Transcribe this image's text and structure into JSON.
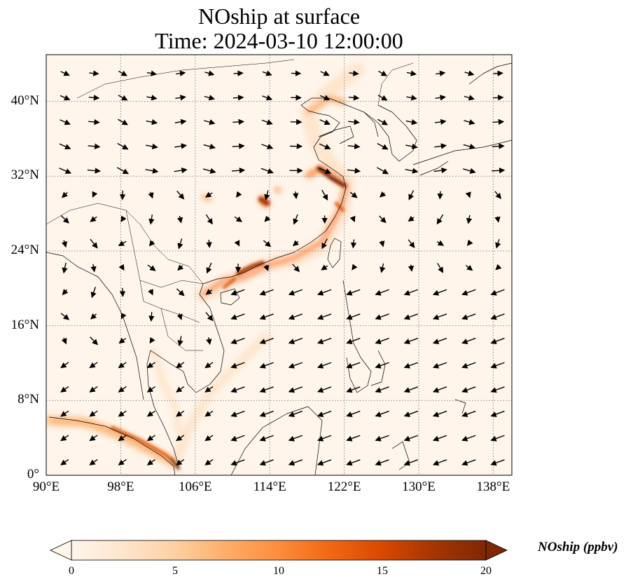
{
  "title": {
    "line1": "NOship at surface",
    "line2": "Time: 2024-03-10 12:00:00"
  },
  "map": {
    "lon_range": [
      90,
      140
    ],
    "lat_range": [
      0,
      45
    ],
    "lon_ticks": [
      {
        "value": 90,
        "label": "90°E"
      },
      {
        "value": 98,
        "label": "98°E"
      },
      {
        "value": 106,
        "label": "106°E"
      },
      {
        "value": 114,
        "label": "114°E"
      },
      {
        "value": 122,
        "label": "122°E"
      },
      {
        "value": 130,
        "label": "130°E"
      },
      {
        "value": 138,
        "label": "138°E"
      }
    ],
    "lat_ticks": [
      {
        "value": 0,
        "label": "0°"
      },
      {
        "value": 8,
        "label": "8°N"
      },
      {
        "value": 16,
        "label": "16°N"
      },
      {
        "value": 24,
        "label": "24°N"
      },
      {
        "value": 32,
        "label": "32°N"
      },
      {
        "value": 40,
        "label": "40°N"
      }
    ],
    "gridlines": true,
    "background_color": "#fff5eb",
    "field": "NOship"
  },
  "colorbar": {
    "label": "NOship (ppbv)",
    "min": 0,
    "max": 20,
    "extend": "both",
    "ticks": [
      {
        "value": 0,
        "label": "0"
      },
      {
        "value": 5,
        "label": "5"
      },
      {
        "value": 10,
        "label": "10"
      },
      {
        "value": 15,
        "label": "15"
      },
      {
        "value": 20,
        "label": "20"
      }
    ],
    "colormap": [
      "#fff5eb",
      "#fee6ce",
      "#fdd0a2",
      "#fdae6b",
      "#fd8d3c",
      "#f16913",
      "#d94801",
      "#a63603",
      "#7f2704"
    ]
  }
}
